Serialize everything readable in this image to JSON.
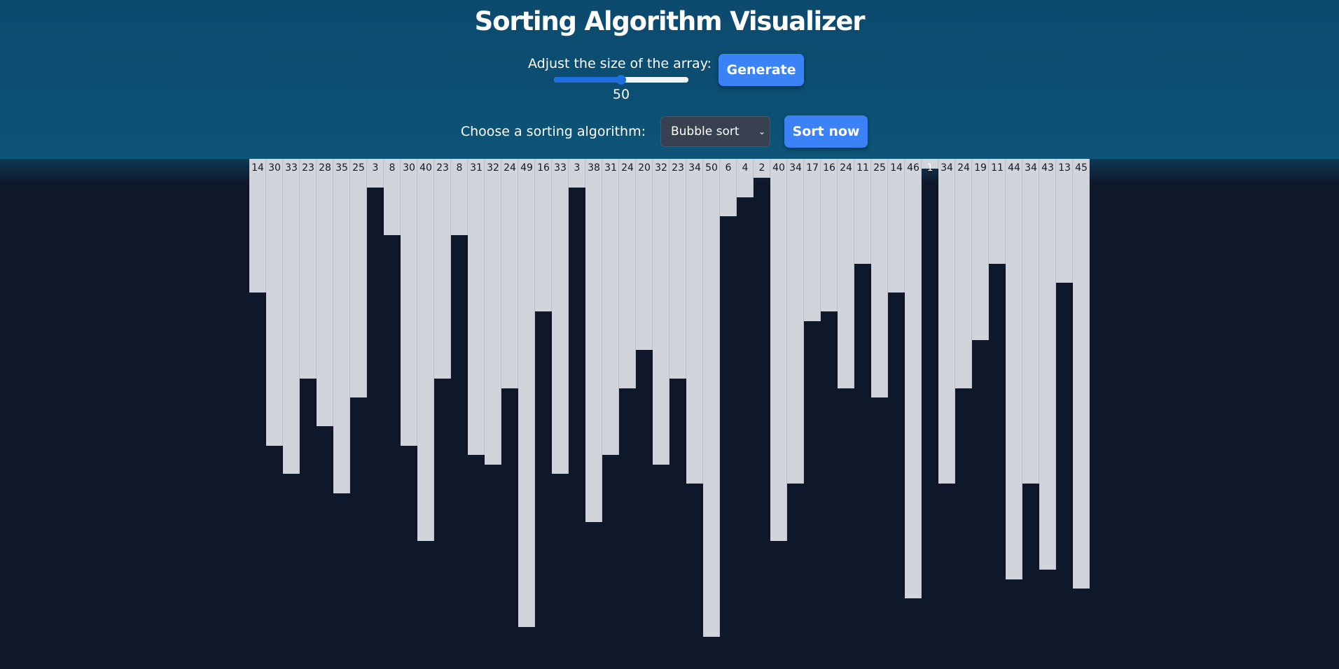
{
  "header": {
    "title": "Sorting Algorithm Visualizer",
    "size_label": "Adjust the size of the array:",
    "size_value": "50",
    "slider_fraction": 0.5,
    "generate_label": "Generate",
    "algo_label": "Choose a sorting algorithm:",
    "algo_selected": "Bubble sort",
    "sort_label": "Sort now"
  },
  "colors": {
    "header_bg": "#0c4a6e",
    "page_bg": "#0f172a",
    "accent": "#3b82f6",
    "bar": "#d1d5db"
  },
  "icons": {
    "select_arrow": "chevron-down-icon"
  },
  "array": {
    "values": [
      14,
      30,
      33,
      23,
      28,
      35,
      25,
      3,
      8,
      30,
      40,
      23,
      8,
      31,
      32,
      24,
      49,
      16,
      33,
      3,
      38,
      31,
      24,
      20,
      32,
      23,
      34,
      50,
      6,
      4,
      2,
      40,
      34,
      17,
      16,
      24,
      11,
      25,
      14,
      46,
      1,
      34,
      24,
      19,
      11,
      44,
      34,
      43,
      13,
      45
    ]
  }
}
